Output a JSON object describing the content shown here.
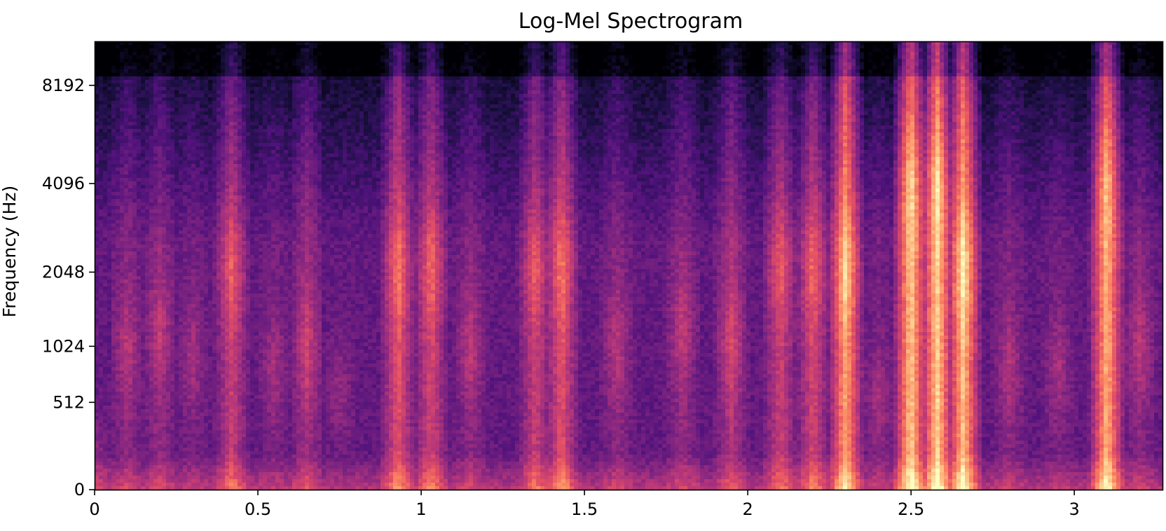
{
  "chart_data": {
    "type": "heatmap",
    "title": "Log-Mel Spectrogram",
    "xlabel": "",
    "ylabel": "Frequency (Hz)",
    "xlim": [
      0,
      3.27
    ],
    "ytick_values": [
      0,
      512,
      1024,
      2048,
      4096,
      8192
    ],
    "xticks": [
      {
        "value": 0,
        "label": "0"
      },
      {
        "value": 0.5,
        "label": "0.5"
      },
      {
        "value": 1,
        "label": "1"
      },
      {
        "value": 1.5,
        "label": "1.5"
      },
      {
        "value": 2,
        "label": "2"
      },
      {
        "value": 2.5,
        "label": "2.5"
      },
      {
        "value": 3,
        "label": "3"
      }
    ],
    "yticks": [
      {
        "value": 0,
        "label": "0"
      },
      {
        "value": 512,
        "label": "512"
      },
      {
        "value": 1024,
        "label": "1024"
      },
      {
        "value": 2048,
        "label": "2048"
      },
      {
        "value": 4096,
        "label": "4096"
      },
      {
        "value": 8192,
        "label": "8192"
      }
    ],
    "ylim": [
      0,
      11025
    ],
    "colormap": "magma",
    "grid": false,
    "energy_profile": [
      {
        "t": 0.0,
        "level": 0.3,
        "peak_hz": 100
      },
      {
        "t": 0.1,
        "level": 0.4,
        "peak_hz": 1000
      },
      {
        "t": 0.2,
        "level": 0.42,
        "peak_hz": 1200
      },
      {
        "t": 0.3,
        "level": 0.35,
        "peak_hz": 900
      },
      {
        "t": 0.42,
        "level": 0.55,
        "peak_hz": 2048
      },
      {
        "t": 0.55,
        "level": 0.35,
        "peak_hz": 800
      },
      {
        "t": 0.65,
        "level": 0.45,
        "peak_hz": 1024
      },
      {
        "t": 0.75,
        "level": 0.3,
        "peak_hz": 600
      },
      {
        "t": 0.93,
        "level": 0.62,
        "peak_hz": 2048
      },
      {
        "t": 1.03,
        "level": 0.58,
        "peak_hz": 2048
      },
      {
        "t": 1.15,
        "level": 0.4,
        "peak_hz": 1024
      },
      {
        "t": 1.35,
        "level": 0.55,
        "peak_hz": 2048
      },
      {
        "t": 1.43,
        "level": 0.62,
        "peak_hz": 2048
      },
      {
        "t": 1.6,
        "level": 0.4,
        "peak_hz": 1024
      },
      {
        "t": 1.8,
        "level": 0.42,
        "peak_hz": 1200
      },
      {
        "t": 1.95,
        "level": 0.48,
        "peak_hz": 1024
      },
      {
        "t": 2.1,
        "level": 0.55,
        "peak_hz": 2048
      },
      {
        "t": 2.2,
        "level": 0.58,
        "peak_hz": 2048
      },
      {
        "t": 2.3,
        "level": 0.82,
        "peak_hz": 2048
      },
      {
        "t": 2.4,
        "level": 0.35,
        "peak_hz": 500
      },
      {
        "t": 2.5,
        "level": 0.9,
        "peak_hz": 4096
      },
      {
        "t": 2.58,
        "level": 0.92,
        "peak_hz": 4096
      },
      {
        "t": 2.66,
        "level": 0.88,
        "peak_hz": 2048
      },
      {
        "t": 2.8,
        "level": 0.38,
        "peak_hz": 800
      },
      {
        "t": 2.95,
        "level": 0.35,
        "peak_hz": 800
      },
      {
        "t": 3.1,
        "level": 0.85,
        "peak_hz": 4096
      },
      {
        "t": 3.2,
        "level": 0.4,
        "peak_hz": 1024
      }
    ]
  }
}
